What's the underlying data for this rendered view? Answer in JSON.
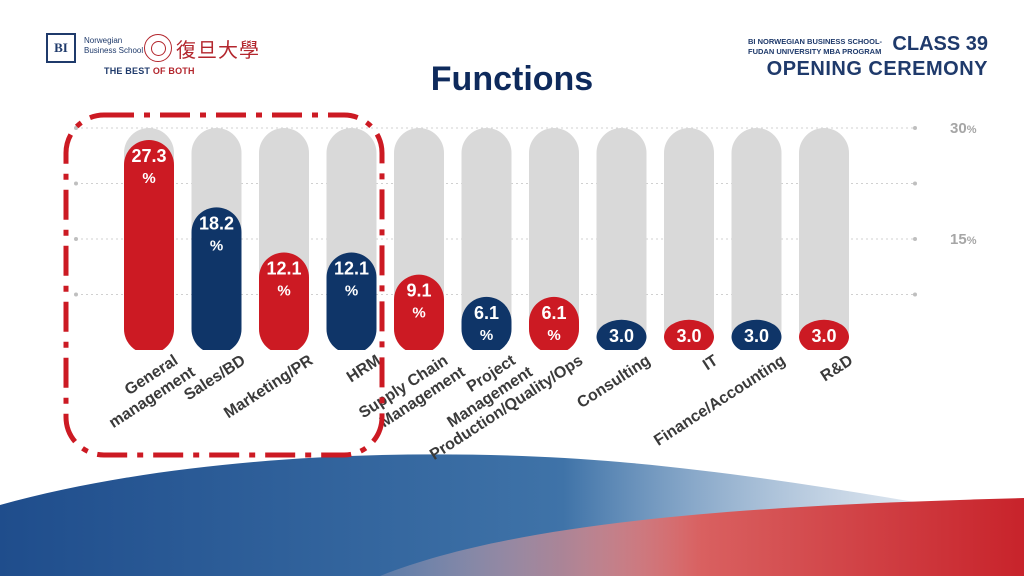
{
  "header": {
    "bi_logo": "BI",
    "bi_name_line1": "Norwegian",
    "bi_name_line2": "Business School",
    "fudan_name": "復旦大學",
    "tagline_part1": "THE BEST ",
    "tagline_part2": "OF BOTH",
    "school_line1": "BI NORWEGIAN BUSINESS SCHOOL-",
    "school_line2": "FUDAN UNIVERSITY MBA PROGRAM",
    "class_label": "CLASS 39",
    "event": "OPENING CEREMONY"
  },
  "colors": {
    "red": "#cc1a23",
    "navy": "#0f3568",
    "track": "#d9d9d9",
    "highlight_border": "#cc1a23"
  },
  "chart_data": {
    "type": "bar",
    "title": "Functions",
    "categories": [
      "General management",
      "Sales/BD",
      "Marketing/PR",
      "HRM",
      "Supply Chain Management",
      "Project Management",
      "Production/Quality/Ops",
      "Consulting",
      "IT",
      "Finance/Accounting",
      "R&D"
    ],
    "values": [
      27.3,
      18.2,
      12.1,
      12.1,
      9.1,
      6.1,
      6.1,
      3.0,
      3.0,
      3.0,
      3.0
    ],
    "value_labels": [
      "27.3%",
      "18.2%",
      "12.1%",
      "12.1%",
      "9.1%",
      "6.1%",
      "6.1%",
      "3.0%",
      "3.0%",
      "3.0%",
      "3.0%"
    ],
    "bar_colors": [
      "red",
      "navy",
      "red",
      "navy",
      "red",
      "navy",
      "red",
      "navy",
      "red",
      "navy",
      "red"
    ],
    "y_ticks": [
      {
        "value": 30,
        "label": "30%"
      },
      {
        "value": 15,
        "label": "15%"
      }
    ],
    "ylim": [
      0,
      30
    ],
    "grid": true,
    "highlighted_categories": [
      "General management",
      "Sales/BD",
      "Marketing/PR",
      "HRM"
    ]
  }
}
